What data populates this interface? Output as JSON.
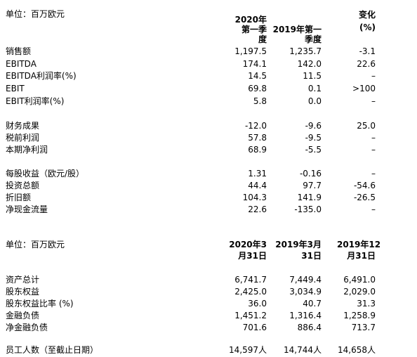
{
  "t1": {
    "unit": "单位：百万欧元",
    "head_c1": [
      "2020年",
      "第一季",
      "度"
    ],
    "head_c2": [
      "2019年第一",
      "季度"
    ],
    "head_c3": [
      "变化",
      "(%)"
    ],
    "rows": [
      {
        "label": "销售额",
        "v1": "1,197.5",
        "v2": "1,235.7",
        "v3": "-3.1"
      },
      {
        "label": "EBITDA",
        "v1": "174.1",
        "v2": "142.0",
        "v3": "22.6"
      },
      {
        "label": "EBITDA利润率(%)",
        "v1": "14.5",
        "v2": "11.5",
        "v3": "–"
      },
      {
        "label": "EBIT",
        "v1": "69.8",
        "v2": "0.1",
        "v3": ">100"
      },
      {
        "label": "EBIT利润率(%)",
        "v1": "5.8",
        "v2": "0.0",
        "v3": "–"
      },
      {
        "label": "财务成果",
        "v1": "-12.0",
        "v2": "-9.6",
        "v3": "25.0"
      },
      {
        "label": "税前利润",
        "v1": "57.8",
        "v2": "-9.5",
        "v3": "–"
      },
      {
        "label": "本期净利润",
        "v1": "68.9",
        "v2": "-5.5",
        "v3": "–"
      },
      {
        "label": "每股收益（欧元/股）",
        "v1": "1.31",
        "v2": "-0.16",
        "v3": "–"
      },
      {
        "label": "投资总额",
        "v1": "44.4",
        "v2": "97.7",
        "v3": "-54.6"
      },
      {
        "label": "折旧额",
        "v1": "104.3",
        "v2": "141.9",
        "v3": "-26.5"
      },
      {
        "label": "净现金流量",
        "v1": "22.6",
        "v2": "-135.0",
        "v3": "–"
      }
    ]
  },
  "t2": {
    "unit": "单位：百万欧元",
    "head_c1": [
      "2020年3",
      "月31日"
    ],
    "head_c2": [
      "2019年3月",
      "31日"
    ],
    "head_c3": [
      "2019年12",
      "月31日"
    ],
    "rows": [
      {
        "label": "资产总计",
        "v1": "6,741.7",
        "v2": "7,449.4",
        "v3": "6,491.0"
      },
      {
        "label": "股东权益",
        "v1": "2,425.0",
        "v2": "3,034.9",
        "v3": "2,029.0"
      },
      {
        "label": "股东权益比率 (%)",
        "v1": "36.0",
        "v2": "40.7",
        "v3": "31.3"
      },
      {
        "label": "金融负债",
        "v1": "1,451.2",
        "v2": "1,316.4",
        "v3": "1,258.9"
      },
      {
        "label": "净金融负债",
        "v1": "701.6",
        "v2": "886.4",
        "v3": "713.7"
      }
    ],
    "employees": {
      "label": "员工人数（至截止日期）",
      "v1": "14,597人",
      "v2": "14,744人",
      "v3": "14,658人"
    }
  }
}
